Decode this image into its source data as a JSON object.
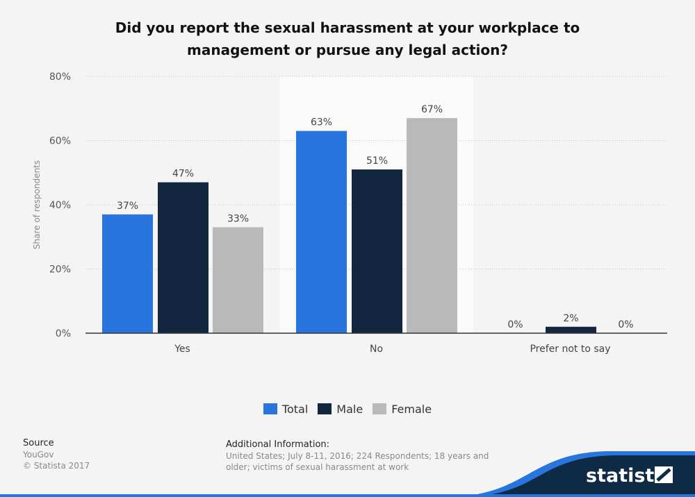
{
  "chart_data": {
    "type": "bar",
    "title": "Did you report the sexual harassment at your workplace to management or pursue any legal action?",
    "categories": [
      "Yes",
      "No",
      "Prefer not to say"
    ],
    "series": [
      {
        "name": "Total",
        "color": "#2876dd",
        "values": [
          37,
          63,
          0
        ]
      },
      {
        "name": "Male",
        "color": "#12263f",
        "values": [
          47,
          51,
          2
        ]
      },
      {
        "name": "Female",
        "color": "#b9b9b9",
        "values": [
          33,
          67,
          0
        ]
      }
    ],
    "ylabel": "Share of respondents",
    "ylim": [
      0,
      80
    ],
    "yticks": [
      "0%",
      "20%",
      "40%",
      "60%",
      "80%"
    ],
    "grid": true,
    "legend": "bottom-center"
  },
  "footer": {
    "source_label": "Source",
    "source": "YouGov",
    "copyright": "© Statista 2017",
    "info_label": "Additional Information:",
    "info": "United States; July 8-11, 2016; 224 Respondents; 18 years and older; victims of sexual harassment at work",
    "logo": "statista"
  }
}
